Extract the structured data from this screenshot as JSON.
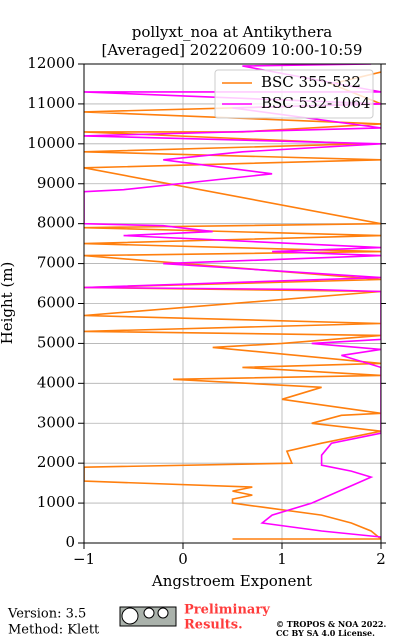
{
  "chart_data": {
    "type": "line",
    "title": "pollyxt_noa at Antikythera",
    "subtitle": "[Averaged] 20220609 10:00-10:59",
    "x_label": "Angstroem Exponent",
    "y_label": "Height (m)",
    "xlim": [
      -1,
      2
    ],
    "xticks": [
      {
        "value": -1,
        "label": "−1"
      },
      0,
      1,
      2
    ],
    "ylim": [
      0,
      12000
    ],
    "yticks": [
      0,
      1000,
      2000,
      3000,
      4000,
      5000,
      6000,
      7000,
      8000,
      9000,
      10000,
      11000,
      12000
    ],
    "grid": true,
    "legend": "upper right",
    "series": [
      {
        "name": "BSC 355-532",
        "color": "#ff7f0e",
        "x": [
          0.5,
          2,
          1.9,
          1.7,
          1.4,
          0.8,
          0.5,
          0.5,
          0.7,
          0.5,
          0.7,
          -1,
          -1,
          1.1,
          1.05,
          1.4,
          2,
          1.3,
          1.6,
          2,
          1,
          1.4,
          -0.1,
          2,
          0.6,
          2,
          0.3,
          1,
          2,
          -1,
          2,
          -1,
          2,
          -1,
          2,
          -1,
          2,
          -1,
          2,
          -1,
          2,
          -1,
          2,
          -1,
          1.8,
          -1,
          0.6,
          2,
          -1,
          2,
          1.5,
          2
        ],
        "y": [
          100,
          100,
          300,
          500,
          700,
          900,
          1000,
          1100,
          1200,
          1300,
          1400,
          1550,
          1900,
          2000,
          2300,
          2500,
          2800,
          3000,
          3200,
          3250,
          3600,
          3900,
          4100,
          4200,
          4400,
          4500,
          4900,
          5000,
          5200,
          5300,
          5500,
          5700,
          6300,
          6400,
          6600,
          7200,
          7300,
          7500,
          7700,
          7900,
          8000,
          9400,
          9600,
          9800,
          10000,
          10300,
          10300,
          10500,
          10800,
          11000,
          11500,
          11800
        ]
      },
      {
        "name": "BSC 532-1064",
        "color": "#ff00ff",
        "x": [
          2,
          1.4,
          0.8,
          0.9,
          1.3,
          1.9,
          1.7,
          1.4,
          1.4,
          1.5,
          2,
          2,
          1.6,
          2,
          1.3,
          2,
          2,
          1.3,
          -1,
          2,
          -0.2,
          2,
          0.9,
          2,
          -0.6,
          0.3,
          -0.2,
          -1,
          -1,
          -0.6,
          0.9,
          -0.2,
          0.6,
          2,
          -1,
          2,
          0.5,
          2,
          -1,
          2,
          0.6,
          1.9
        ],
        "y": [
          150,
          300,
          500,
          700,
          1000,
          1650,
          1800,
          1950,
          2200,
          2500,
          2750,
          4400,
          4700,
          4850,
          5000,
          5100,
          6300,
          6350,
          6400,
          6650,
          7000,
          7200,
          7300,
          7400,
          7700,
          7800,
          7950,
          8000,
          8800,
          8850,
          9250,
          9600,
          9800,
          10000,
          10200,
          10400,
          10900,
          11000,
          11300,
          11300,
          11950,
          12000
        ]
      }
    ]
  },
  "footer": {
    "version": "Version: 3.5",
    "method": "Method: Klett",
    "preliminary": "Preliminary",
    "results": "Results.",
    "copyright": "© TROPOS & NOA 2022.",
    "license": "CC BY SA 4.0 License."
  }
}
